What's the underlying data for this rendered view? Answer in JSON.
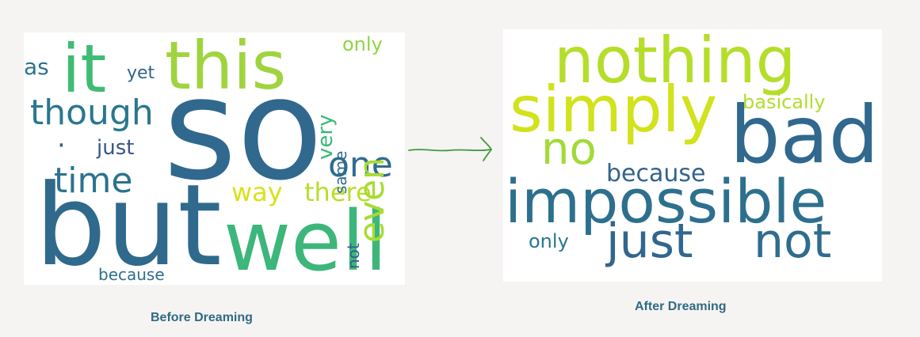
{
  "before": {
    "caption": "Before Dreaming",
    "words": [
      {
        "text": "so",
        "color": "#31688e"
      },
      {
        "text": "but",
        "color": "#2f6a8c"
      },
      {
        "text": "well",
        "color": "#3cb67a"
      },
      {
        "text": "this",
        "color": "#9fd43f"
      },
      {
        "text": "it",
        "color": "#3fbc73"
      },
      {
        "text": "though",
        "color": "#2a778e"
      },
      {
        "text": "time",
        "color": "#2c728e"
      },
      {
        "text": "one",
        "color": "#2f6b8e"
      },
      {
        "text": "way",
        "color": "#d8e219"
      },
      {
        "text": "there",
        "color": "#b8de29"
      },
      {
        "text": "even",
        "color": "#a8db34"
      },
      {
        "text": "very",
        "color": "#38b977"
      },
      {
        "text": "as",
        "color": "#2c738e"
      },
      {
        "text": "yet",
        "color": "#33638d"
      },
      {
        "text": "only",
        "color": "#8ed645"
      },
      {
        "text": "just",
        "color": "#3a548c"
      },
      {
        "text": "same",
        "color": "#2f6b8e"
      },
      {
        "text": "not",
        "color": "#355f8d"
      },
      {
        "text": "because",
        "color": "#2e6f8e"
      },
      {
        "text": "·",
        "color": "#34618d"
      }
    ]
  },
  "after": {
    "caption": "After Dreaming",
    "words": [
      {
        "text": "nothing",
        "color": "#b5de2b"
      },
      {
        "text": "simply",
        "color": "#d2e21b"
      },
      {
        "text": "bad",
        "color": "#31688e"
      },
      {
        "text": "no",
        "color": "#a2da37"
      },
      {
        "text": "basically",
        "color": "#b0dd2f"
      },
      {
        "text": "because",
        "color": "#33638d"
      },
      {
        "text": "impossible",
        "color": "#2d708e"
      },
      {
        "text": "only",
        "color": "#2a778e"
      },
      {
        "text": "just",
        "color": "#31668e"
      },
      {
        "text": "not",
        "color": "#2f6c8e"
      }
    ]
  },
  "arrow_color": "#3f9a3f"
}
